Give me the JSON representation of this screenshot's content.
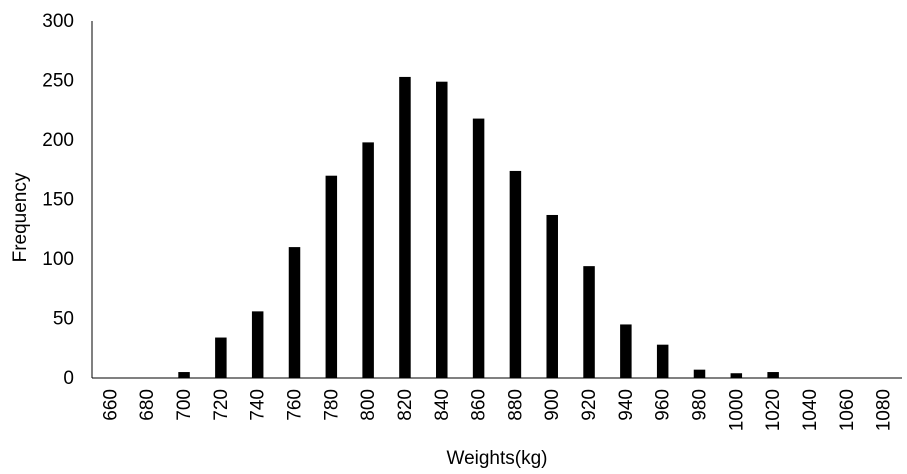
{
  "chart_data": {
    "type": "bar",
    "title": "",
    "xlabel": "Weights(kg)",
    "ylabel": "Frequency",
    "categories": [
      "660",
      "680",
      "700",
      "720",
      "740",
      "760",
      "780",
      "800",
      "820",
      "840",
      "860",
      "880",
      "900",
      "920",
      "940",
      "960",
      "980",
      "1000",
      "1020",
      "1040",
      "1060",
      "1080"
    ],
    "values": [
      0,
      0,
      5,
      34,
      56,
      110,
      170,
      198,
      253,
      249,
      218,
      174,
      137,
      94,
      45,
      28,
      7,
      4,
      5,
      0,
      0,
      0
    ],
    "ylim": [
      0,
      300
    ],
    "yticks": [
      "0",
      "50",
      "100",
      "150",
      "200",
      "250",
      "300"
    ],
    "grid": false,
    "legend": "none",
    "bar_color": "#000000"
  }
}
